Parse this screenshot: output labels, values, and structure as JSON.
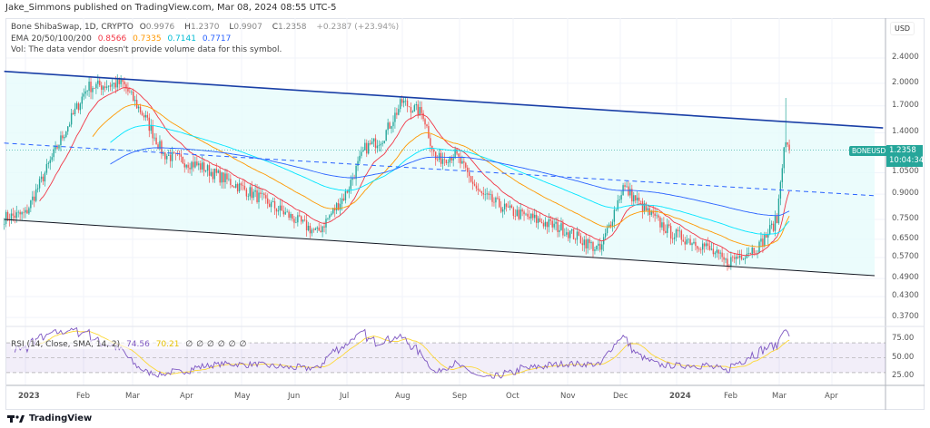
{
  "header": {
    "publisher_line": "Jake_Simmons published on TradingView.com, Mar 08, 2024 08:55 UTC-5"
  },
  "legend": {
    "symbol": "Bone ShibaSwap, 1D, CRYPTO",
    "o_label": "O",
    "open": "0.9976",
    "h_label": "H",
    "high": "1.2370",
    "l_label": "L",
    "low": "0.9907",
    "c_label": "C",
    "close": "1.2358",
    "change": "+0.2387 (+23.94%)",
    "ema_label": "EMA 20/50/100/200",
    "ema_values": [
      "0.8566",
      "0.7335",
      "0.7141",
      "0.7717"
    ],
    "vol": "Vol: The data vendor doesn't provide volume data for this symbol."
  },
  "rsi_legend": {
    "label": "RSI (14, Close, SMA, 14, 2)",
    "rsi": "74.56",
    "sma": "70.21",
    "empty": [
      "∅",
      "∅",
      "∅",
      "∅",
      "∅",
      "∅"
    ]
  },
  "price_axis": {
    "currency": "USD",
    "ticks": [
      "2.4000",
      "2.0000",
      "1.7000",
      "1.4000",
      "1.0500",
      "0.9000",
      "0.7500",
      "0.6500",
      "0.5700",
      "0.4900",
      "0.4300",
      "0.3700"
    ],
    "scale": "log"
  },
  "rsi_axis": {
    "ticks": [
      "75.00",
      "50.00",
      "25.00"
    ]
  },
  "time_axis": {
    "ticks": [
      "2023",
      "Feb",
      "Mar",
      "Apr",
      "May",
      "Jun",
      "Jul",
      "Aug",
      "Sep",
      "Oct",
      "Nov",
      "Dec",
      "2024",
      "Feb",
      "Mar",
      "Apr"
    ]
  },
  "last_price": {
    "symbol": "BONEUSD",
    "price": "1.2358",
    "countdown": "10:04:34"
  },
  "colors": {
    "up": "#26a69a",
    "down": "#ef5350",
    "ema20": "#f23645",
    "ema50": "#ff9800",
    "ema100": "#00e5ff",
    "ema200": "#2962ff",
    "rsi": "#7e57c2",
    "rsi_sma": "#fdd835",
    "channel": "#1a3fa6"
  },
  "chart_data": {
    "type": "candlestick",
    "interval": "1D",
    "price_path": [
      [
        "2022-12-20",
        0.76
      ],
      [
        "2023-01-01",
        0.78
      ],
      [
        "2023-01-20",
        1.3
      ],
      [
        "2023-02-05",
        1.95
      ],
      [
        "2023-02-25",
        2.0
      ],
      [
        "2023-03-10",
        1.55
      ],
      [
        "2023-03-20",
        1.2
      ],
      [
        "2023-04-10",
        1.1
      ],
      [
        "2023-05-10",
        0.9
      ],
      [
        "2023-06-15",
        0.68
      ],
      [
        "2023-07-01",
        0.9
      ],
      [
        "2023-07-12",
        1.25
      ],
      [
        "2023-07-22",
        1.35
      ],
      [
        "2023-08-02",
        1.75
      ],
      [
        "2023-08-14",
        1.6
      ],
      [
        "2023-08-21",
        1.15
      ],
      [
        "2023-09-01",
        1.2
      ],
      [
        "2023-09-15",
        0.9
      ],
      [
        "2023-10-01",
        0.8
      ],
      [
        "2023-11-01",
        0.7
      ],
      [
        "2023-11-22",
        0.6
      ],
      [
        "2023-12-05",
        0.95
      ],
      [
        "2023-12-20",
        0.78
      ],
      [
        "2024-01-01",
        0.68
      ],
      [
        "2024-01-20",
        0.62
      ],
      [
        "2024-02-01",
        0.55
      ],
      [
        "2024-02-20",
        0.62
      ],
      [
        "2024-03-01",
        0.75
      ],
      [
        "2024-03-05",
        1.3
      ],
      [
        "2024-03-08",
        1.2358
      ]
    ],
    "channel": {
      "upper": [
        [
          "2022-12-20",
          2.18
        ],
        [
          "2024-04-30",
          1.45
        ]
      ],
      "lower": [
        [
          "2022-12-20",
          0.75
        ],
        [
          "2024-04-25",
          0.5
        ]
      ],
      "mid": [
        [
          "2022-12-20",
          1.3
        ],
        [
          "2024-04-25",
          0.89
        ]
      ]
    },
    "ema_periods": [
      20,
      50,
      100,
      200
    ],
    "rsi": {
      "period": 14,
      "value": 74.56,
      "sma": 70.21,
      "levels": [
        70,
        50,
        30
      ]
    }
  }
}
